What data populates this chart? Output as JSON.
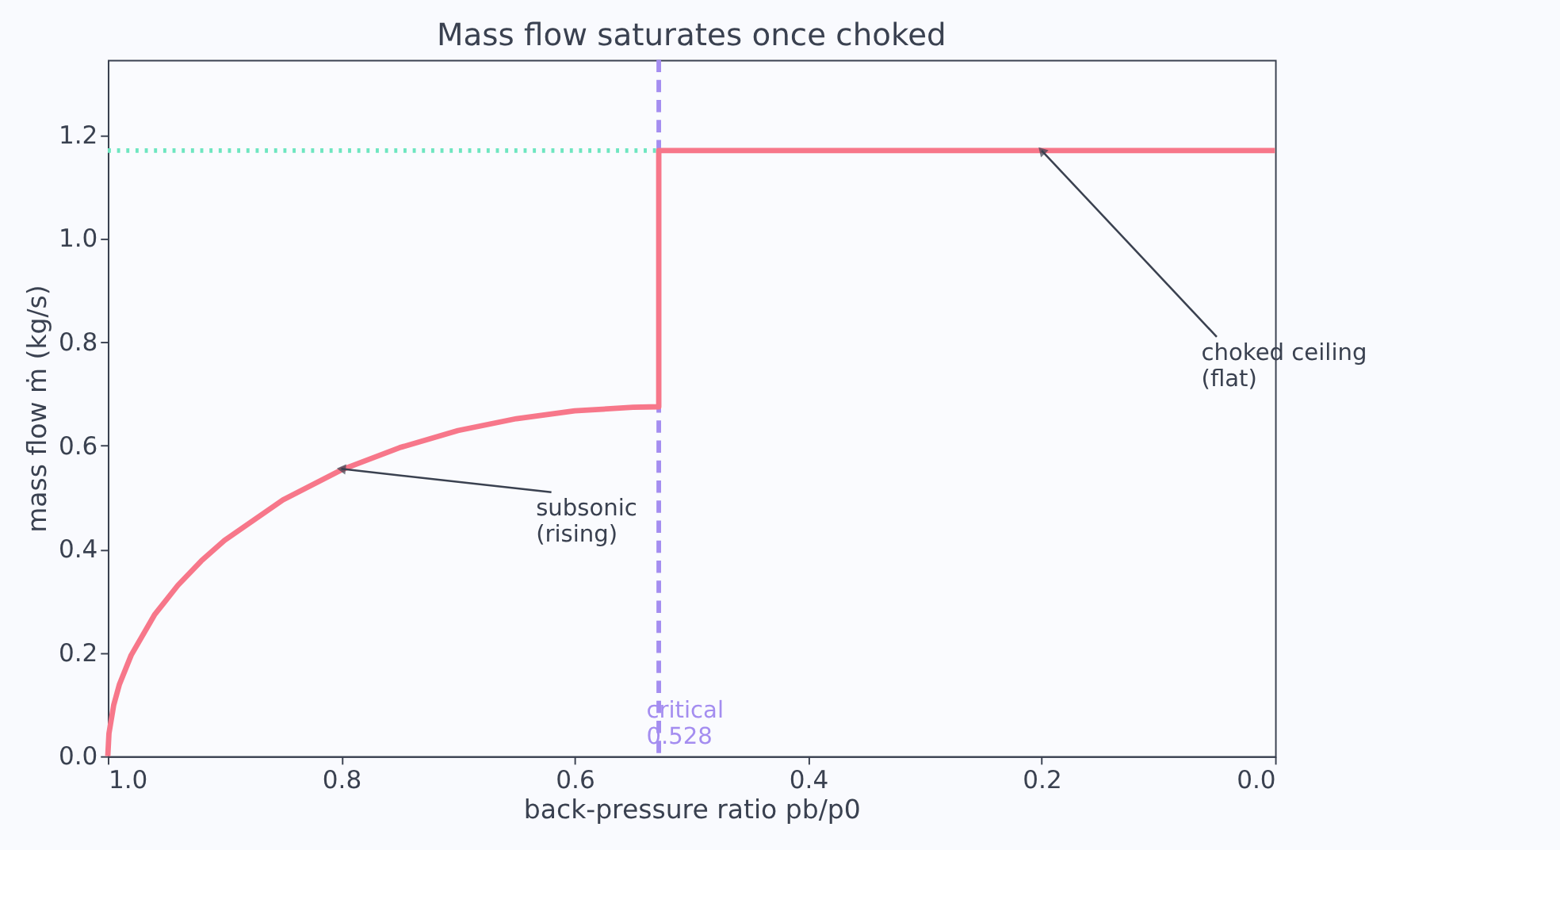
{
  "chart_data": {
    "type": "line",
    "title": "Mass flow saturates once choked",
    "xlabel": "back-pressure ratio  pb/p0",
    "ylabel": "mass flow  ṁ  (kg/s)",
    "x": [
      1.0,
      0.999,
      0.995,
      0.99,
      0.98,
      0.96,
      0.94,
      0.92,
      0.9,
      0.85,
      0.8,
      0.75,
      0.7,
      0.65,
      0.6,
      0.55,
      0.528,
      0.528,
      0.0
    ],
    "series": [
      {
        "color": "#f7778a",
        "values": [
          0.0,
          0.044,
          0.098,
          0.139,
          0.195,
          0.273,
          0.33,
          0.377,
          0.417,
          0.495,
          0.553,
          0.596,
          0.629,
          0.652,
          0.667,
          0.674,
          0.675,
          1.17,
          1.17
        ]
      }
    ],
    "xlim": [
      1.0,
      0.0
    ],
    "ylim": [
      0.0,
      1.345
    ],
    "xticks": [
      {
        "value": 1.0,
        "label": "1.0"
      },
      0.8,
      0.6,
      0.4,
      0.2,
      {
        "value": 0.0,
        "label": "0.0"
      }
    ],
    "yticks": [
      {
        "value": 0.0,
        "label": "0.0"
      },
      0.2,
      0.4,
      0.6,
      0.8,
      {
        "value": 1.0,
        "label": "1.0"
      },
      1.2
    ],
    "ref_lines": [
      {
        "axis": "y",
        "value": 1.17,
        "color": "#6ee6c0",
        "line_style": "dotted"
      },
      {
        "axis": "x",
        "value": 0.528,
        "label": "critical\n0.528",
        "color": "#a48df0",
        "line_style": "dashed"
      }
    ],
    "annotations": [
      {
        "text": "subsonic\n(rising)",
        "x": 0.8,
        "y": 0.555
      },
      {
        "text": "choked ceiling\n(flat)",
        "x": 0.2,
        "y": 1.17
      }
    ],
    "grid": false,
    "marker": "none",
    "line_style": "solid"
  }
}
